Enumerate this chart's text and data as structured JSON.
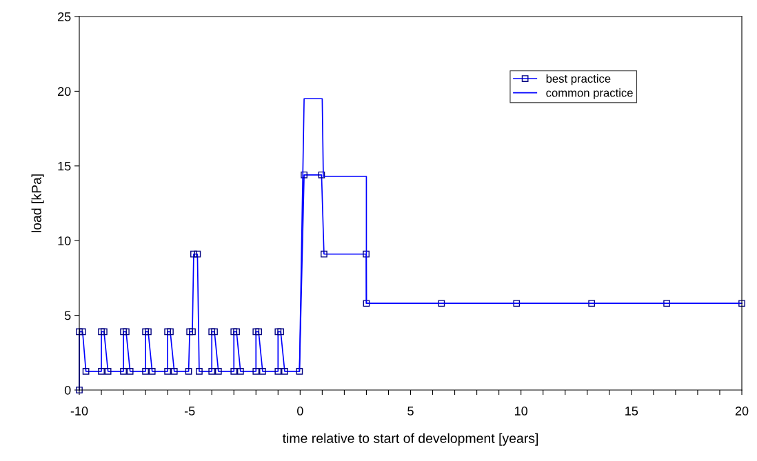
{
  "chart_data": {
    "type": "line",
    "xlabel": "time relative to start of development [years]",
    "ylabel": "load [kPa]",
    "xlim": [
      -10,
      20
    ],
    "ylim": [
      0,
      25
    ],
    "xticks": [
      -10,
      {
        "value": -9,
        "label": null
      },
      {
        "value": -8,
        "label": null
      },
      {
        "value": -7,
        "label": null
      },
      {
        "value": -6,
        "label": null
      },
      -5,
      {
        "value": -4,
        "label": null
      },
      {
        "value": -3,
        "label": null
      },
      {
        "value": -2,
        "label": null
      },
      {
        "value": -1,
        "label": null
      },
      0,
      {
        "value": 1,
        "label": null
      },
      {
        "value": 2,
        "label": null
      },
      {
        "value": 3,
        "label": null
      },
      {
        "value": 4,
        "label": null
      },
      5,
      {
        "value": 6,
        "label": null
      },
      {
        "value": 7,
        "label": null
      },
      {
        "value": 8,
        "label": null
      },
      {
        "value": 9,
        "label": null
      },
      10,
      {
        "value": 11,
        "label": null
      },
      {
        "value": 12,
        "label": null
      },
      {
        "value": 13,
        "label": null
      },
      {
        "value": 14,
        "label": null
      },
      15,
      {
        "value": 16,
        "label": null
      },
      {
        "value": 17,
        "label": null
      },
      {
        "value": 18,
        "label": null
      },
      {
        "value": 19,
        "label": null
      },
      20
    ],
    "yticks": [
      0,
      5,
      10,
      15,
      20,
      25
    ],
    "grid": false,
    "legend": "top right",
    "series": [
      {
        "name": "best practice",
        "color": "#0000ff",
        "marker": "square",
        "line_style": "solid",
        "x": [
          -10,
          -10,
          -9.85,
          -9.7,
          -9.0,
          -9.0,
          -8.88,
          -8.7,
          -8.0,
          -8.0,
          -7.88,
          -7.7,
          -7.0,
          -7.0,
          -6.88,
          -6.7,
          -6.0,
          -6.0,
          -5.88,
          -5.7,
          -5.05,
          -5.0,
          -4.88,
          -4.82,
          -4.65,
          -4.57,
          -4.0,
          -4.0,
          -3.88,
          -3.7,
          -3.0,
          -3.0,
          -2.88,
          -2.7,
          -2.0,
          -2.0,
          -1.88,
          -1.7,
          -1.0,
          -1.0,
          -0.88,
          -0.7,
          -0.03,
          0.18,
          0.97,
          1.08,
          2.99,
          3.0,
          6.4,
          9.8,
          13.2,
          16.6,
          20
        ],
        "values": [
          0,
          3.9,
          3.9,
          1.25,
          1.25,
          3.9,
          3.9,
          1.25,
          1.25,
          3.9,
          3.9,
          1.25,
          1.25,
          3.9,
          3.9,
          1.25,
          1.25,
          3.9,
          3.9,
          1.25,
          1.25,
          3.9,
          3.9,
          9.1,
          9.1,
          1.25,
          1.25,
          3.9,
          3.9,
          1.25,
          1.25,
          3.9,
          3.9,
          1.25,
          1.25,
          3.9,
          3.9,
          1.25,
          1.25,
          3.9,
          3.9,
          1.25,
          1.25,
          14.4,
          14.4,
          9.1,
          9.1,
          5.8,
          5.8,
          5.8,
          5.8,
          5.8,
          5.8
        ]
      },
      {
        "name": "common practice",
        "color": "#0000ff",
        "marker": "none",
        "line_style": "solid",
        "x": [
          -0.03,
          0.18,
          1.0,
          1.05,
          3.0,
          3.0,
          20
        ],
        "values": [
          1.25,
          19.5,
          19.5,
          14.3,
          14.3,
          5.8,
          5.8
        ]
      }
    ]
  }
}
